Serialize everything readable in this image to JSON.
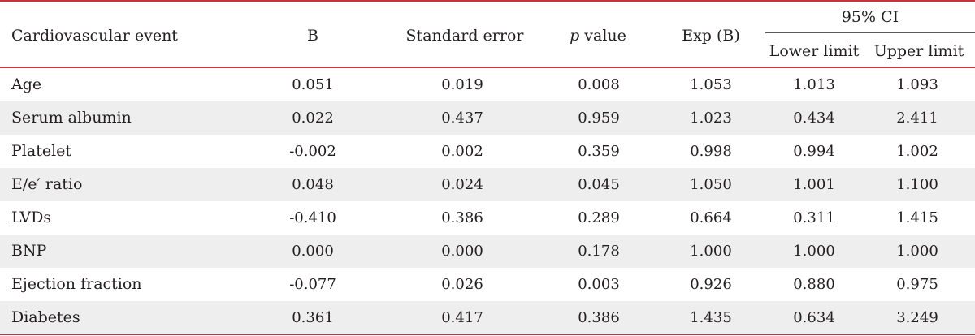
{
  "header": {
    "event": "Cardiovascular event",
    "b": "B",
    "se": "Standard error",
    "p_italic": "p",
    "p_rest": " value",
    "expb": "Exp (B)",
    "ci": "95% CI",
    "lower": "Lower limit",
    "upper": "Upper limit"
  },
  "rows": [
    {
      "event": "Age",
      "b": "0.051",
      "se": "0.019",
      "p": "0.008",
      "expb": "1.053",
      "lower": "1.013",
      "upper": "1.093"
    },
    {
      "event": "Serum albumin",
      "b": "0.022",
      "se": "0.437",
      "p": "0.959",
      "expb": "1.023",
      "lower": "0.434",
      "upper": "2.411"
    },
    {
      "event": "Platelet",
      "b": "-0.002",
      "se": "0.002",
      "p": "0.359",
      "expb": "0.998",
      "lower": "0.994",
      "upper": "1.002"
    },
    {
      "event": "E/e′ ratio",
      "b": "0.048",
      "se": "0.024",
      "p": "0.045",
      "expb": "1.050",
      "lower": "1.001",
      "upper": "1.100"
    },
    {
      "event": "LVDs",
      "b": "-0.410",
      "se": "0.386",
      "p": "0.289",
      "expb": "0.664",
      "lower": "0.311",
      "upper": "1.415"
    },
    {
      "event": "BNP",
      "b": "0.000",
      "se": "0.000",
      "p": "0.178",
      "expb": "1.000",
      "lower": "1.000",
      "upper": "1.000"
    },
    {
      "event": "Ejection fraction",
      "b": "-0.077",
      "se": "0.026",
      "p": "0.003",
      "expb": "0.926",
      "lower": "0.880",
      "upper": "0.975"
    },
    {
      "event": "Diabetes",
      "b": "0.361",
      "se": "0.417",
      "p": "0.386",
      "expb": "1.435",
      "lower": "0.634",
      "upper": "3.249"
    }
  ]
}
